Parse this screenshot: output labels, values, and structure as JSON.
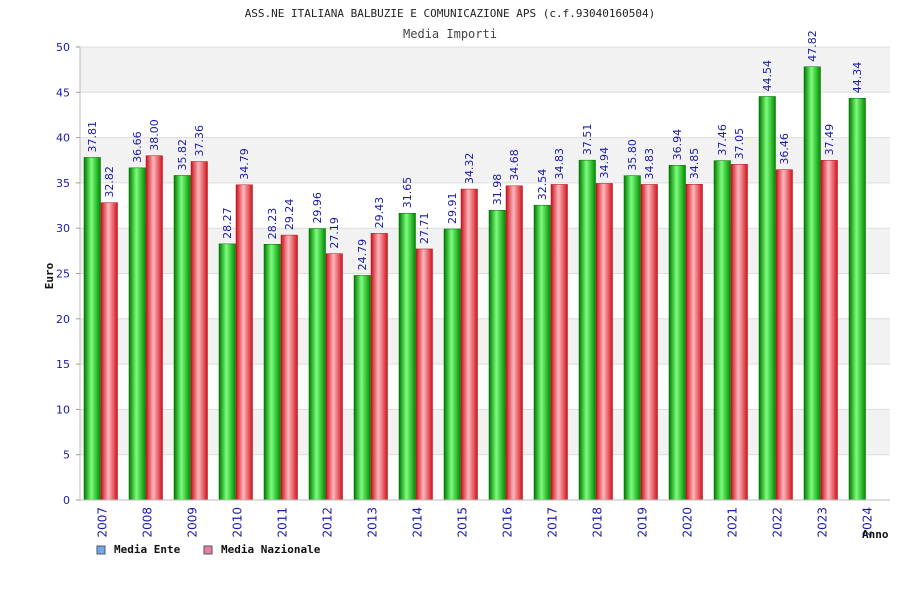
{
  "chart_data": {
    "type": "bar",
    "title": "ASS.NE ITALIANA BALBUZIE E COMUNICAZIONE APS (c.f.93040160504)",
    "subtitle": "Media Importi",
    "xlabel": "Anno",
    "ylabel": "Euro",
    "ylim": [
      0,
      50
    ],
    "yticks": [
      "0",
      "5",
      "10",
      "15",
      "20",
      "25",
      "30",
      "35",
      "40",
      "45",
      "50"
    ],
    "grid": true,
    "legend_position": "bottom-left",
    "categories": [
      "2007",
      "2008",
      "2009",
      "2010",
      "2011",
      "2012",
      "2013",
      "2014",
      "2015",
      "2016",
      "2017",
      "2018",
      "2019",
      "2020",
      "2021",
      "2022",
      "2023",
      "2024"
    ],
    "series": [
      {
        "name": "Media Ente",
        "color": "#00b800",
        "legend_color": "#6fa8ee",
        "values": [
          37.81,
          36.66,
          35.82,
          28.27,
          28.23,
          29.96,
          24.79,
          31.65,
          29.91,
          31.98,
          32.54,
          37.51,
          35.8,
          36.94,
          37.46,
          44.54,
          47.82,
          44.34
        ],
        "labels": [
          "37.81",
          "36.66",
          "35.82",
          "28.27",
          "28.23",
          "29.96",
          "24.79",
          "31.65",
          "29.91",
          "31.98",
          "32.54",
          "37.51",
          "35.80",
          "36.94",
          "37.46",
          "44.54",
          "47.82",
          "44.34"
        ]
      },
      {
        "name": "Media Nazionale",
        "color": "#e8202a",
        "legend_color": "#e87aa6",
        "values": [
          32.82,
          38.0,
          37.36,
          34.79,
          29.24,
          27.19,
          29.43,
          27.71,
          34.32,
          34.68,
          34.83,
          34.94,
          34.83,
          34.85,
          37.05,
          36.46,
          37.49,
          null
        ],
        "labels": [
          "32.82",
          "38.00",
          "37.36",
          "34.79",
          "29.24",
          "27.19",
          "29.43",
          "27.71",
          "34.32",
          "34.68",
          "34.83",
          "34.94",
          "34.83",
          "34.85",
          "37.05",
          "36.46",
          "37.49",
          ""
        ]
      }
    ]
  }
}
